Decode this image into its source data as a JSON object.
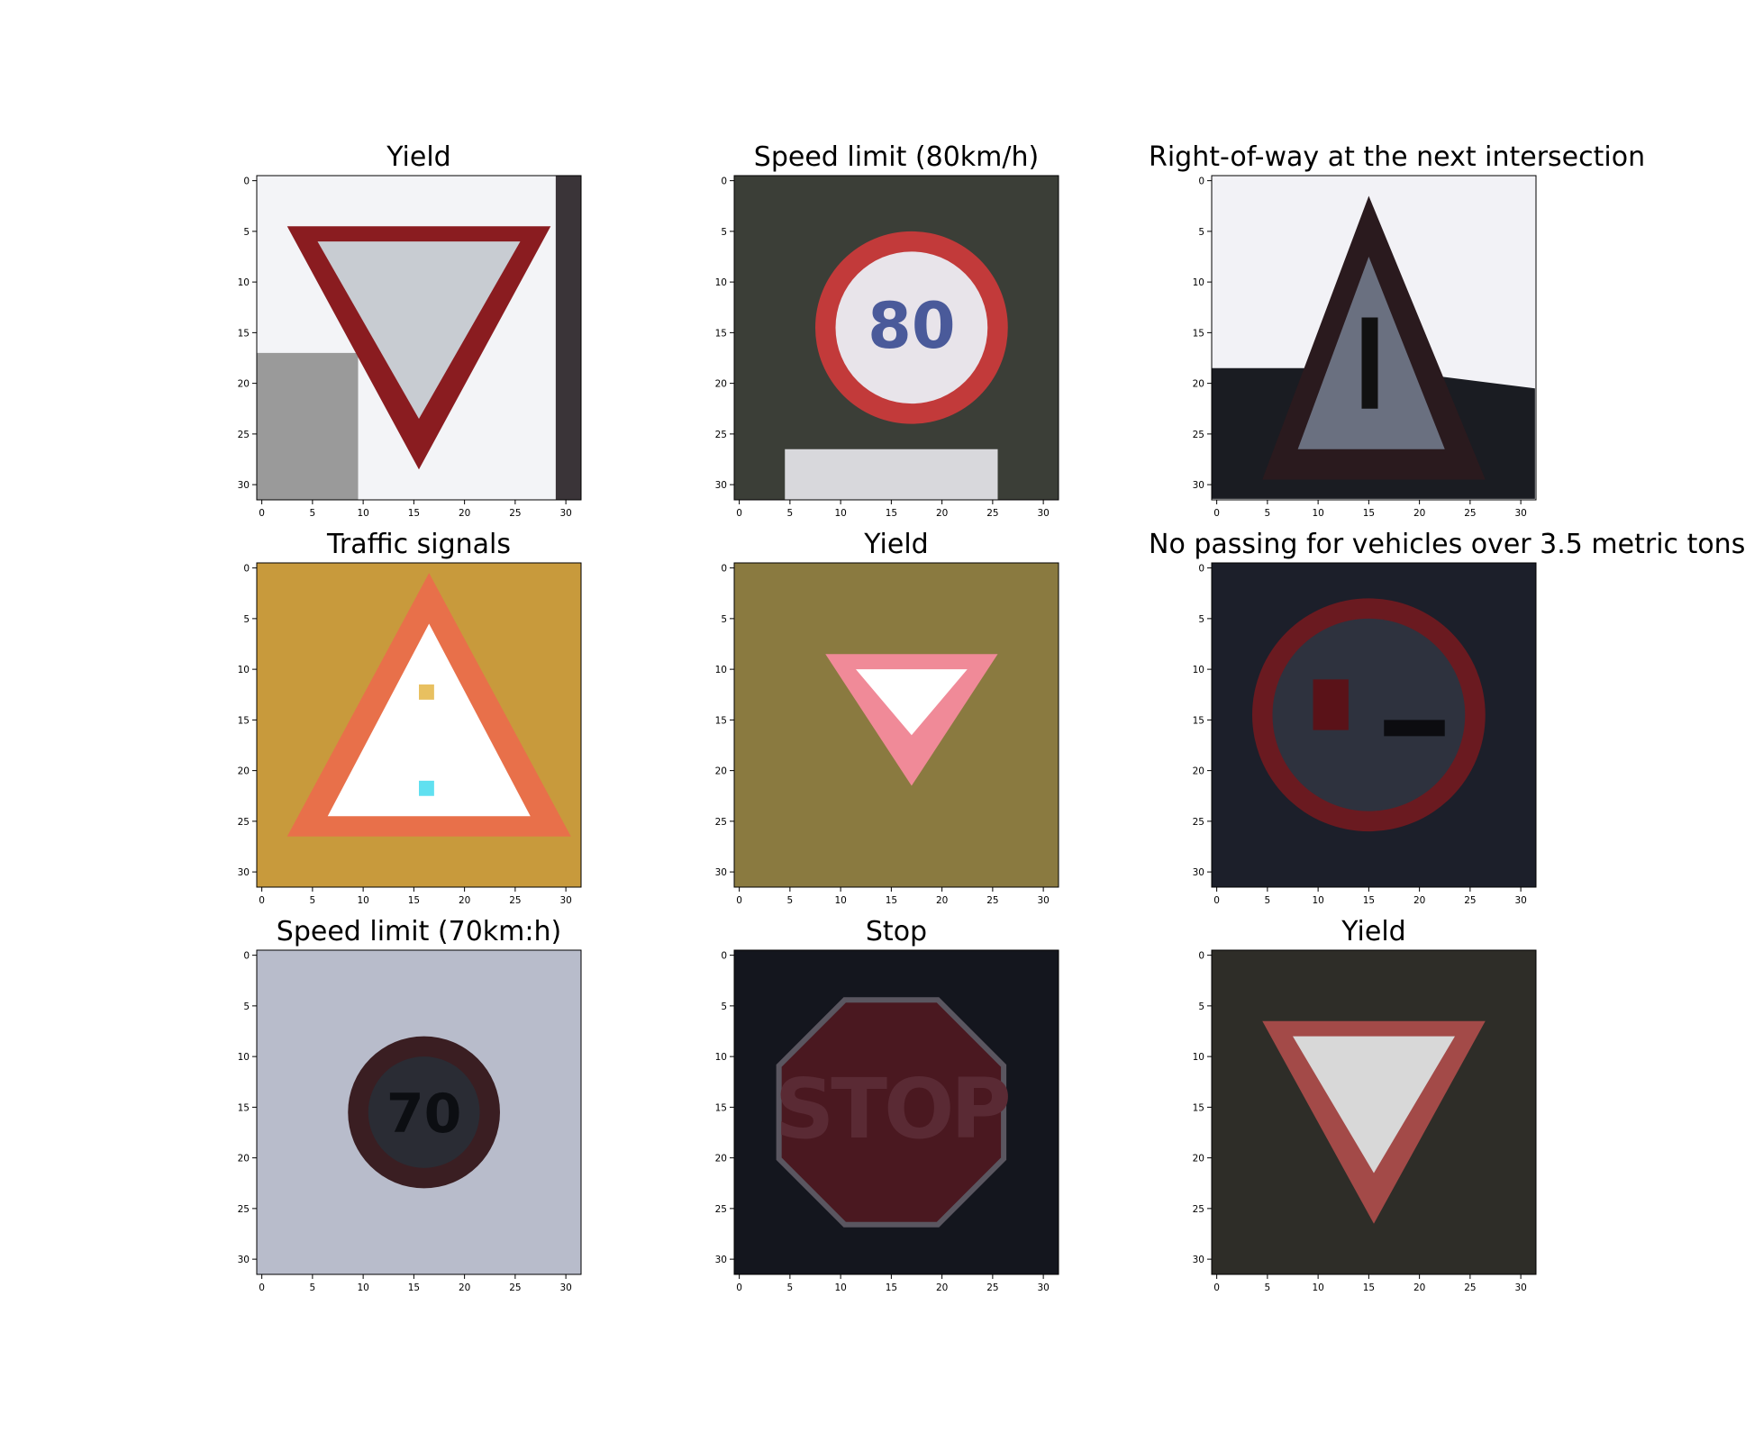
{
  "figure": {
    "panels": [
      {
        "title": "Yield",
        "sign": "yield",
        "bg": "#f3f4f7",
        "bg2": "#9a9a9a"
      },
      {
        "title": "Speed limit (80km/h)",
        "sign": "speed80",
        "bg": "#3b3e37",
        "bg2": "#5a5a52"
      },
      {
        "title": "Right-of-way at the next intersection",
        "sign": "rightofway",
        "bg": "#f2f2f6",
        "bg2": "#1a1c22"
      },
      {
        "title": "Traffic signals",
        "sign": "traffic",
        "bg": "#c89a3c",
        "bg2": "#e8c860"
      },
      {
        "title": "Yield",
        "sign": "yield2",
        "bg": "#8a7a40",
        "bg2": "#c8a860"
      },
      {
        "title": "No passing for vehicles over 3.5 metric tons",
        "sign": "nopassing",
        "bg": "#1c1f2a",
        "bg2": "#2a2e3a"
      },
      {
        "title": "Speed limit (70km:h)",
        "sign": "speed70",
        "bg": "#b8bccb",
        "bg2": "#14161c"
      },
      {
        "title": "Stop",
        "sign": "stop",
        "bg": "#14161e",
        "bg2": "#2a2c36"
      },
      {
        "title": "Yield",
        "sign": "yield3",
        "bg": "#2e2d28",
        "bg2": "#3a3832"
      }
    ],
    "ticks": [
      "0",
      "5",
      "10",
      "15",
      "20",
      "25",
      "30"
    ],
    "sign_text": {
      "stop": "STOP",
      "speed80": "80",
      "speed70": "70"
    },
    "colors": {
      "sign_red": "#8a1c20",
      "bright_red": "#d83a3a",
      "white": "#f0f0f0"
    }
  }
}
